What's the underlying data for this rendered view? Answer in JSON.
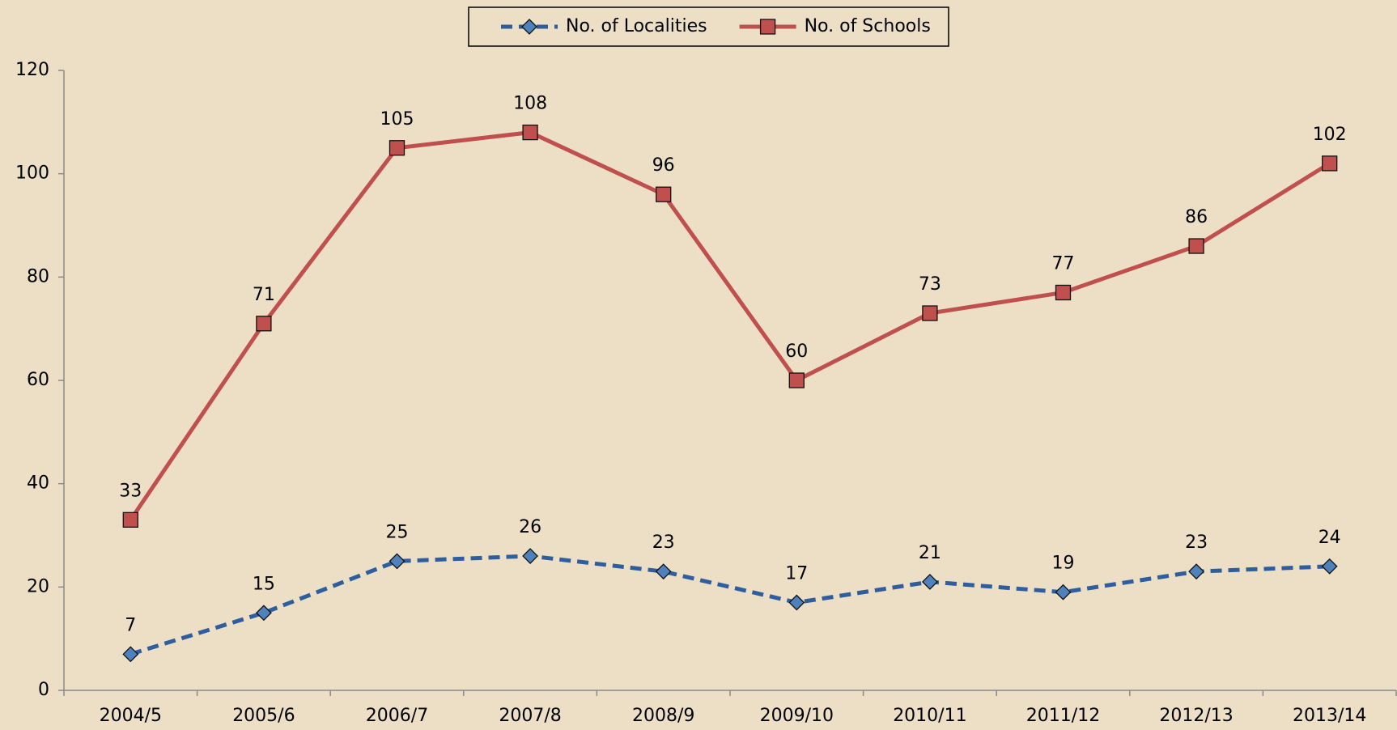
{
  "chart_data": {
    "type": "line",
    "categories": [
      "2004/5",
      "2005/6",
      "2006/7",
      "2007/8",
      "2008/9",
      "2009/10",
      "2010/11",
      "2011/12",
      "2012/13",
      "2013/14"
    ],
    "series": [
      {
        "name": "No. of Localities",
        "color": "#2e5e9e",
        "marker_color": "#4f81bd",
        "marker": "diamond",
        "dashed": true,
        "values": [
          7,
          15,
          25,
          26,
          23,
          17,
          21,
          19,
          23,
          24
        ]
      },
      {
        "name": "No. of Schools",
        "color": "#c0504d",
        "marker_color": "#c0504d",
        "marker": "square",
        "dashed": false,
        "values": [
          33,
          71,
          105,
          108,
          96,
          60,
          73,
          77,
          86,
          102
        ]
      }
    ],
    "ylim": [
      0,
      120
    ],
    "yticks": [
      0,
      20,
      40,
      60,
      80,
      100,
      120
    ],
    "legend": "top"
  }
}
